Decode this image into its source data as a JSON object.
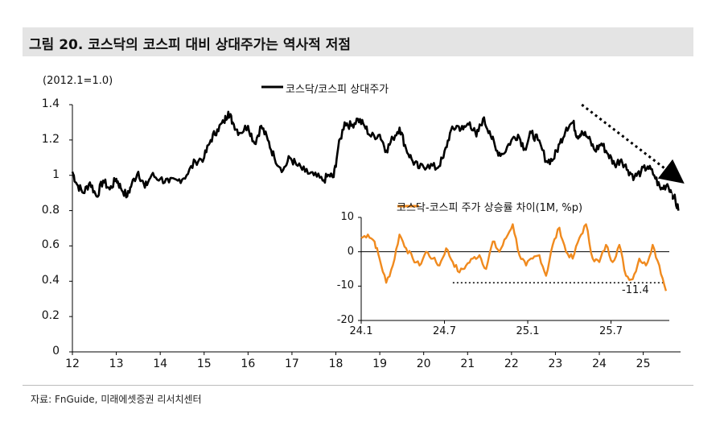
{
  "title": "그림 20. 코스닥의 코스피 대비 상대주가는 역사적 저점",
  "unit_note": "(2012.1=1.0)",
  "source": "자료: FnGuide, 미래에셋증권 리서치센터",
  "colors": {
    "main_line": "#000000",
    "inset_line": "#f08a1e",
    "title_bg": "#e4e4e4",
    "dotted": "#000000"
  },
  "chart_data": [
    {
      "type": "line",
      "title": "코스닥의 코스피 대비 상대주가는 역사적 저점",
      "legend": "코스닥/코스피 상대주가",
      "ylim": [
        0,
        1.4
      ],
      "yticks": [
        0,
        0.2,
        0.4,
        0.6,
        0.8,
        1,
        1.2,
        1.4
      ],
      "ytick_labels": [
        "0",
        "0.2",
        "0.4",
        "0.6",
        "0.8",
        "1",
        "1.2",
        "1.4"
      ],
      "xlim": [
        2012.0,
        2025.85
      ],
      "xticks": [
        2012,
        2013,
        2014,
        2015,
        2016,
        2017,
        2018,
        2019,
        2020,
        2021,
        2022,
        2023,
        2024,
        2025
      ],
      "xtick_labels": [
        "12",
        "13",
        "14",
        "15",
        "16",
        "17",
        "18",
        "19",
        "20",
        "21",
        "22",
        "23",
        "24",
        "25"
      ],
      "x": [
        2012.0,
        2012.1,
        2012.25,
        2012.4,
        2012.55,
        2012.7,
        2012.85,
        2013.0,
        2013.1,
        2013.25,
        2013.35,
        2013.5,
        2013.65,
        2013.8,
        2014.0,
        2014.2,
        2014.4,
        2014.6,
        2014.8,
        2015.0,
        2015.15,
        2015.3,
        2015.45,
        2015.55,
        2015.65,
        2015.8,
        2016.0,
        2016.15,
        2016.3,
        2016.45,
        2016.6,
        2016.8,
        2016.95,
        2017.1,
        2017.3,
        2017.5,
        2017.7,
        2017.85,
        2017.95,
        2018.05,
        2018.2,
        2018.35,
        2018.5,
        2018.65,
        2018.8,
        2019.0,
        2019.15,
        2019.3,
        2019.45,
        2019.6,
        2019.75,
        2019.9,
        2020.1,
        2020.3,
        2020.45,
        2020.6,
        2020.75,
        2020.9,
        2021.05,
        2021.2,
        2021.35,
        2021.5,
        2021.65,
        2021.8,
        2022.0,
        2022.15,
        2022.3,
        2022.45,
        2022.6,
        2022.8,
        2022.95,
        2023.1,
        2023.25,
        2023.4,
        2023.5,
        2023.6,
        2023.75,
        2023.9,
        2024.05,
        2024.2,
        2024.35,
        2024.5,
        2024.65,
        2024.8,
        2024.95,
        2025.1,
        2025.25,
        2025.4,
        2025.55,
        2025.7,
        2025.8
      ],
      "y": [
        1.02,
        0.95,
        0.9,
        0.96,
        0.88,
        0.97,
        0.92,
        0.98,
        0.93,
        0.88,
        0.95,
        1.02,
        0.93,
        1.0,
        0.98,
        0.96,
        0.97,
        1.0,
        1.08,
        1.1,
        1.2,
        1.26,
        1.3,
        1.36,
        1.3,
        1.24,
        1.28,
        1.18,
        1.28,
        1.2,
        1.1,
        1.03,
        1.1,
        1.06,
        1.02,
        1.0,
        0.97,
        1.0,
        0.99,
        1.15,
        1.3,
        1.28,
        1.32,
        1.28,
        1.22,
        1.23,
        1.14,
        1.21,
        1.27,
        1.15,
        1.08,
        1.04,
        1.06,
        1.04,
        1.1,
        1.24,
        1.28,
        1.26,
        1.3,
        1.22,
        1.32,
        1.25,
        1.14,
        1.12,
        1.2,
        1.23,
        1.15,
        1.24,
        1.2,
        1.08,
        1.09,
        1.18,
        1.27,
        1.3,
        1.22,
        1.25,
        1.21,
        1.14,
        1.18,
        1.12,
        1.06,
        1.09,
        1.03,
        0.99,
        1.02,
        1.05,
        1.0,
        0.92,
        0.95,
        0.88,
        0.8
      ],
      "trend_arrow": {
        "from": [
          2023.6,
          1.4
        ],
        "to": [
          2025.85,
          0.97
        ],
        "style": "dotted"
      }
    },
    {
      "type": "line",
      "title": "코스닥-코스피 주가 상승률 차이(1M, %p)",
      "legend": "코스닥-코스피 주가 상승률 차이(1M, %p)",
      "ylim": [
        -20,
        10
      ],
      "yticks": [
        -20,
        -10,
        0,
        10
      ],
      "ytick_labels": [
        "-20",
        "-10",
        "0",
        "10"
      ],
      "xlim": [
        2024.0,
        2025.85
      ],
      "xticks": [
        2024.0,
        2024.5,
        2025.0,
        2025.5
      ],
      "xtick_labels": [
        "24.1",
        "24.7",
        "25.1",
        "25.7"
      ],
      "x": [
        2024.0,
        2024.04,
        2024.08,
        2024.11,
        2024.15,
        2024.19,
        2024.23,
        2024.27,
        2024.31,
        2024.35,
        2024.39,
        2024.43,
        2024.47,
        2024.51,
        2024.55,
        2024.59,
        2024.63,
        2024.67,
        2024.71,
        2024.75,
        2024.79,
        2024.83,
        2024.87,
        2024.91,
        2024.95,
        2024.99,
        2025.03,
        2025.07,
        2025.11,
        2025.15,
        2025.19,
        2025.23,
        2025.27,
        2025.31,
        2025.35,
        2025.39,
        2025.43,
        2025.47,
        2025.51,
        2025.55,
        2025.59,
        2025.63,
        2025.67,
        2025.71,
        2025.75,
        2025.79,
        2025.83
      ],
      "y": [
        4,
        5,
        3,
        -2,
        -9,
        -4,
        5,
        1,
        -2,
        -4,
        0,
        -2,
        -4,
        1,
        -3,
        -6,
        -4,
        -2,
        -1,
        -5,
        3,
        0,
        4,
        8,
        -1,
        -4,
        -2,
        -1,
        -7,
        2,
        7,
        0,
        -2,
        4,
        8,
        -2,
        -3,
        2,
        -3,
        2,
        -7,
        -8,
        -2,
        -4,
        2,
        -4,
        -11.4
      ],
      "ref_line": {
        "y": -9.0,
        "from_x": 2024.55,
        "to_x": 2025.82,
        "style": "dotted"
      },
      "annotation": "-11.4"
    }
  ]
}
